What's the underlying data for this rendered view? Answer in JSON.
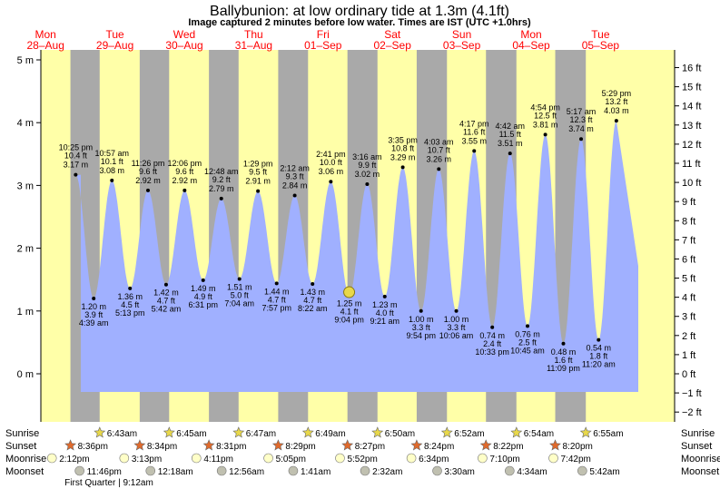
{
  "header": {
    "title": "Ballybunion: at low  ordinary tide at 1.3m (4.1ft)",
    "subtitle": "Image captured 2 minutes before low water. Times are IST (UTC +1.0hrs)"
  },
  "days": [
    {
      "dow": "Mon",
      "date": "28–Aug"
    },
    {
      "dow": "Tue",
      "date": "29–Aug"
    },
    {
      "dow": "Wed",
      "date": "30–Aug"
    },
    {
      "dow": "Thu",
      "date": "31–Aug"
    },
    {
      "dow": "Fri",
      "date": "01–Sep"
    },
    {
      "dow": "Sat",
      "date": "02–Sep"
    },
    {
      "dow": "Sun",
      "date": "03–Sep"
    },
    {
      "dow": "Mon",
      "date": "04–Sep"
    },
    {
      "dow": "Tue",
      "date": "05–Sep"
    }
  ],
  "row_labels": {
    "sunrise": "Sunrise",
    "sunset": "Sunset",
    "moonrise": "Moonrise",
    "moonset": "Moonset"
  },
  "astro": {
    "sunrise": [
      "6:43am",
      "6:45am",
      "6:47am",
      "6:49am",
      "6:50am",
      "6:52am",
      "6:54am",
      "6:55am"
    ],
    "sunset": [
      "8:36pm",
      "8:34pm",
      "8:31pm",
      "8:29pm",
      "8:27pm",
      "8:24pm",
      "8:22pm",
      "8:20pm"
    ],
    "moonrise": [
      "2:12pm",
      "3:13pm",
      "4:11pm",
      "5:05pm",
      "5:52pm",
      "6:34pm",
      "7:10pm",
      "7:42pm"
    ],
    "moonset": [
      "11:46pm",
      "12:18am",
      "12:56am",
      "1:41am",
      "2:32am",
      "3:30am",
      "4:34am",
      "5:42am"
    ],
    "moon_phase_note": "First Quarter | 9:12am"
  },
  "chart_data": {
    "type": "area",
    "title": "Ballybunion: at low  ordinary tide at 1.3m (4.1ft)",
    "subtitle": "Image captured 2 minutes before low water. Times are IST (UTC +1.0hrs)",
    "y_left_ticks": [
      "0 m",
      "1 m",
      "2 m",
      "3 m",
      "4 m",
      "5 m"
    ],
    "y_left_range_m": [
      -0.72,
      5.1
    ],
    "y_right_ticks": [
      "−2 ft",
      "−1 ft",
      "0 ft",
      "1 ft",
      "2 ft",
      "3 ft",
      "4 ft",
      "5 ft",
      "6 ft",
      "7 ft",
      "8 ft",
      "9 ft",
      "10 ft",
      "11 ft",
      "12 ft",
      "13 ft",
      "14 ft",
      "15 ft",
      "16 ft"
    ],
    "current": {
      "time": "2023-09-01 21:02",
      "height_m": 1.3
    },
    "extremes": [
      {
        "type": "high",
        "time": "2023-08-28 22:25",
        "time_label": "10:25 pm",
        "ft": "10.4 ft",
        "m_label": "3.17 m",
        "m": 3.17
      },
      {
        "type": "low",
        "time": "2023-08-29 04:39",
        "time_label": "4:39 am",
        "ft": "3.9 ft",
        "m_label": "1.20 m",
        "m": 1.2
      },
      {
        "type": "high",
        "time": "2023-08-29 10:57",
        "time_label": "10:57 am",
        "ft": "10.1 ft",
        "m_label": "3.08 m",
        "m": 3.08
      },
      {
        "type": "low",
        "time": "2023-08-29 17:13",
        "time_label": "5:13 pm",
        "ft": "4.5 ft",
        "m_label": "1.36 m",
        "m": 1.36
      },
      {
        "type": "high",
        "time": "2023-08-29 23:26",
        "time_label": "11:26 pm",
        "ft": "9.6 ft",
        "m_label": "2.92 m",
        "m": 2.92
      },
      {
        "type": "low",
        "time": "2023-08-30 05:42",
        "time_label": "5:42 am",
        "ft": "4.7 ft",
        "m_label": "1.42 m",
        "m": 1.42
      },
      {
        "type": "high",
        "time": "2023-08-30 12:06",
        "time_label": "12:06 pm",
        "ft": "9.6 ft",
        "m_label": "2.92 m",
        "m": 2.92
      },
      {
        "type": "low",
        "time": "2023-08-30 18:31",
        "time_label": "6:31 pm",
        "ft": "4.9 ft",
        "m_label": "1.49 m",
        "m": 1.49
      },
      {
        "type": "high",
        "time": "2023-08-31 00:48",
        "time_label": "12:48 am",
        "ft": "9.2 ft",
        "m_label": "2.79 m",
        "m": 2.79
      },
      {
        "type": "low",
        "time": "2023-08-31 07:04",
        "time_label": "7:04 am",
        "ft": "5.0 ft",
        "m_label": "1.51 m",
        "m": 1.51
      },
      {
        "type": "high",
        "time": "2023-08-31 13:29",
        "time_label": "1:29 pm",
        "ft": "9.5 ft",
        "m_label": "2.91 m",
        "m": 2.91
      },
      {
        "type": "low",
        "time": "2023-08-31 19:57",
        "time_label": "7:57 pm",
        "ft": "4.7 ft",
        "m_label": "1.44 m",
        "m": 1.44
      },
      {
        "type": "high",
        "time": "2023-09-01 02:12",
        "time_label": "2:12 am",
        "ft": "9.3 ft",
        "m_label": "2.84 m",
        "m": 2.84
      },
      {
        "type": "low",
        "time": "2023-09-01 08:22",
        "time_label": "8:22 am",
        "ft": "4.7 ft",
        "m_label": "1.43 m",
        "m": 1.43
      },
      {
        "type": "high",
        "time": "2023-09-01 14:41",
        "time_label": "2:41 pm",
        "ft": "10.0 ft",
        "m_label": "3.06 m",
        "m": 3.06
      },
      {
        "type": "low",
        "time": "2023-09-01 21:04",
        "time_label": "9:04 pm",
        "ft": "4.1 ft",
        "m_label": "1.25 m",
        "m": 1.25
      },
      {
        "type": "high",
        "time": "2023-09-02 03:16",
        "time_label": "3:16 am",
        "ft": "9.9 ft",
        "m_label": "3.02 m",
        "m": 3.02
      },
      {
        "type": "low",
        "time": "2023-09-02 09:21",
        "time_label": "9:21 am",
        "ft": "4.0 ft",
        "m_label": "1.23 m",
        "m": 1.23
      },
      {
        "type": "high",
        "time": "2023-09-02 15:35",
        "time_label": "3:35 pm",
        "ft": "10.8 ft",
        "m_label": "3.29 m",
        "m": 3.29
      },
      {
        "type": "low",
        "time": "2023-09-02 21:54",
        "time_label": "9:54 pm",
        "ft": "3.3 ft",
        "m_label": "1.00 m",
        "m": 1.0
      },
      {
        "type": "high",
        "time": "2023-09-03 04:03",
        "time_label": "4:03 am",
        "ft": "10.7 ft",
        "m_label": "3.26 m",
        "m": 3.26
      },
      {
        "type": "low",
        "time": "2023-09-03 10:06",
        "time_label": "10:06 am",
        "ft": "3.3 ft",
        "m_label": "1.00 m",
        "m": 1.0
      },
      {
        "type": "high",
        "time": "2023-09-03 16:17",
        "time_label": "4:17 pm",
        "ft": "11.6 ft",
        "m_label": "3.55 m",
        "m": 3.55
      },
      {
        "type": "low",
        "time": "2023-09-03 22:33",
        "time_label": "10:33 pm",
        "ft": "2.4 ft",
        "m_label": "0.74 m",
        "m": 0.74
      },
      {
        "type": "high",
        "time": "2023-09-04 04:42",
        "time_label": "4:42 am",
        "ft": "11.5 ft",
        "m_label": "3.51 m",
        "m": 3.51
      },
      {
        "type": "low",
        "time": "2023-09-04 10:45",
        "time_label": "10:45 am",
        "ft": "2.5 ft",
        "m_label": "0.76 m",
        "m": 0.76
      },
      {
        "type": "high",
        "time": "2023-09-04 16:54",
        "time_label": "4:54 pm",
        "ft": "12.5 ft",
        "m_label": "3.81 m",
        "m": 3.81
      },
      {
        "type": "low",
        "time": "2023-09-04 23:09",
        "time_label": "11:09 pm",
        "ft": "1.6 ft",
        "m_label": "0.48 m",
        "m": 0.48
      },
      {
        "type": "high",
        "time": "2023-09-05 05:17",
        "time_label": "5:17 am",
        "ft": "12.3 ft",
        "m_label": "3.74 m",
        "m": 3.74
      },
      {
        "type": "low",
        "time": "2023-09-05 11:20",
        "time_label": "11:20 am",
        "ft": "1.8 ft",
        "m_label": "0.54 m",
        "m": 0.54
      },
      {
        "type": "high",
        "time": "2023-09-05 17:29",
        "time_label": "5:29 pm",
        "ft": "13.2 ft",
        "m_label": "4.03 m",
        "m": 4.03
      }
    ]
  },
  "colors": {
    "background": "#ffffff",
    "day": "#ffffa8",
    "night": "#a9a9a9",
    "tide": "#a0b0ff",
    "day_header": "#ff0000",
    "sun": "#e8d84a",
    "sunset_star": "#e06a2c",
    "moon_rise": "#ffffc8",
    "moon_set": "#c0c0b0"
  }
}
